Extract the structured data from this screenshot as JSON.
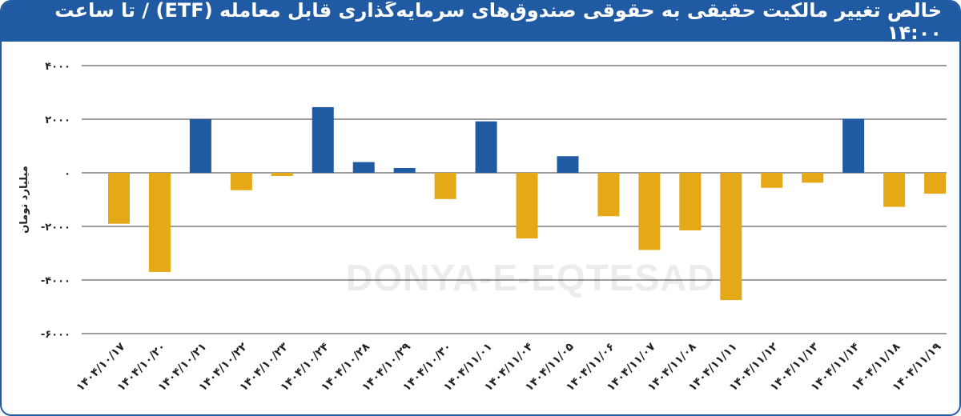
{
  "title": "خالص تغییر مالکیت حقیقی به حقوقی صندوق‌های سرمایه‌گذاری قابل معامله (ETF) / تا ساعت ۱۴:۰۰",
  "watermark": "DONYA-E-EQTESAD",
  "colors": {
    "header_bg": "#1f5aa3",
    "positive": "#1f5aa3",
    "negative": "#e5a817"
  },
  "chart_data": {
    "type": "bar",
    "title": "خالص تغییر مالکیت حقیقی به حقوقی صندوق‌های سرمایه‌گذاری قابل معامله (ETF) / تا ساعت ۱۴:۰۰",
    "ylabel": "میلیارد تومان",
    "xlabel": "",
    "ylim": [
      -6000,
      4000
    ],
    "yticks": [
      4000,
      2000,
      0,
      -2000,
      -4000,
      -6000
    ],
    "ytick_labels": [
      "۴۰۰۰",
      "۲۰۰۰",
      "۰",
      "-۲۰۰۰",
      "-۴۰۰۰",
      "-۶۰۰۰"
    ],
    "grid": true,
    "categories": [
      "۱۴۰۴/۱۰/۱۷",
      "۱۴۰۴/۱۰/۲۰",
      "۱۴۰۴/۱۰/۲۱",
      "۱۴۰۴/۱۰/۲۲",
      "۱۴۰۴/۱۰/۲۳",
      "۱۴۰۴/۱۰/۲۴",
      "۱۴۰۴/۱۰/۲۸",
      "۱۴۰۴/۱۰/۲۹",
      "۱۴۰۴/۱۰/۳۰",
      "۱۴۰۴/۱۱/۰۱",
      "۱۴۰۴/۱۱/۰۴",
      "۱۴۰۴/۱۱/۰۵",
      "۱۴۰۴/۱۱/۰۶",
      "۱۴۰۴/۱۱/۰۷",
      "۱۴۰۴/۱۱/۰۸",
      "۱۴۰۴/۱۱/۱۱",
      "۱۴۰۴/۱۱/۱۲",
      "۱۴۰۴/۱۱/۱۳",
      "۱۴۰۴/۱۱/۱۴",
      "۱۴۰۴/۱۱/۱۸",
      "۱۴۰۴/۱۱/۱۹"
    ],
    "values": [
      -1900,
      -3700,
      2000,
      -650,
      -120,
      2450,
      400,
      180,
      -980,
      1920,
      -2450,
      620,
      -1620,
      -2880,
      -2150,
      -4750,
      -560,
      -370,
      2020,
      -1270,
      -780
    ]
  }
}
